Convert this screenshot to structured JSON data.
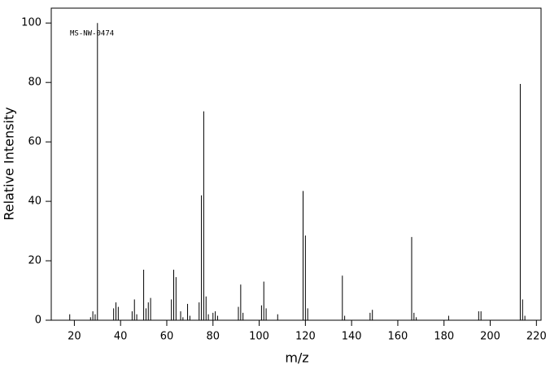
{
  "chart_data": {
    "type": "stick",
    "annotation": "MS-NW-0474",
    "xlabel": "m/z",
    "ylabel": "Relative Intensity",
    "x": [
      18,
      27,
      28,
      29,
      30,
      37,
      38,
      39,
      45,
      46,
      47,
      50,
      51,
      52,
      53,
      62,
      63,
      64,
      66,
      67,
      69,
      70,
      74,
      75,
      76,
      77,
      78,
      80,
      81,
      82,
      91,
      92,
      93,
      101,
      102,
      103,
      108,
      119,
      120,
      121,
      136,
      137,
      148,
      149,
      166,
      167,
      168,
      182,
      195,
      196,
      213,
      214,
      215
    ],
    "values": [
      2,
      1,
      3,
      2,
      100,
      4,
      6,
      4.5,
      3,
      7,
      2,
      17,
      4,
      6,
      7.5,
      7,
      17,
      14.5,
      3,
      1,
      5.5,
      1.5,
      6,
      42,
      70.3,
      8,
      2,
      2.5,
      3,
      1.5,
      4.5,
      12,
      2.5,
      5,
      13,
      4,
      2,
      43.5,
      28.5,
      4,
      15,
      1.5,
      2.5,
      3.5,
      28,
      2.5,
      1,
      1.5,
      3,
      3,
      79.5,
      7,
      1.5
    ],
    "color": "#000000",
    "xlim": [
      10,
      222
    ],
    "ylim": [
      0,
      105
    ],
    "xticks": [
      20,
      40,
      60,
      80,
      100,
      120,
      140,
      160,
      180,
      200,
      220
    ],
    "yticks": [
      0,
      20,
      40,
      60,
      80,
      100
    ]
  }
}
